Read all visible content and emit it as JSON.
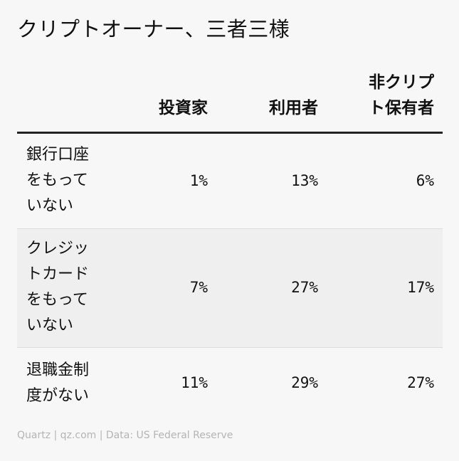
{
  "chart_data": {
    "type": "table",
    "title": "クリプトオーナー、三者三様",
    "columns": [
      "投資家",
      "利用者",
      "非クリプト保有者"
    ],
    "column_lines": [
      [
        "投資家"
      ],
      [
        "利用者"
      ],
      [
        "非クリプ",
        "ト保有者"
      ]
    ],
    "rows": [
      {
        "label": "銀行口座をもっていない",
        "label_lines": [
          "銀行口座",
          "をもって",
          "いない"
        ],
        "values": [
          "1%",
          "13%",
          "6%"
        ]
      },
      {
        "label": "クレジットカードをもっていない",
        "label_lines": [
          "クレジッ",
          "トカード",
          "をもって",
          "いない"
        ],
        "values": [
          "7%",
          "27%",
          "17%"
        ]
      },
      {
        "label": "退職金制度がない",
        "label_lines": [
          "退職金制",
          "度がない"
        ],
        "values": [
          "11%",
          "29%",
          "27%"
        ]
      }
    ],
    "source": "Quartz | qz.com | Data: US Federal Reserve"
  }
}
